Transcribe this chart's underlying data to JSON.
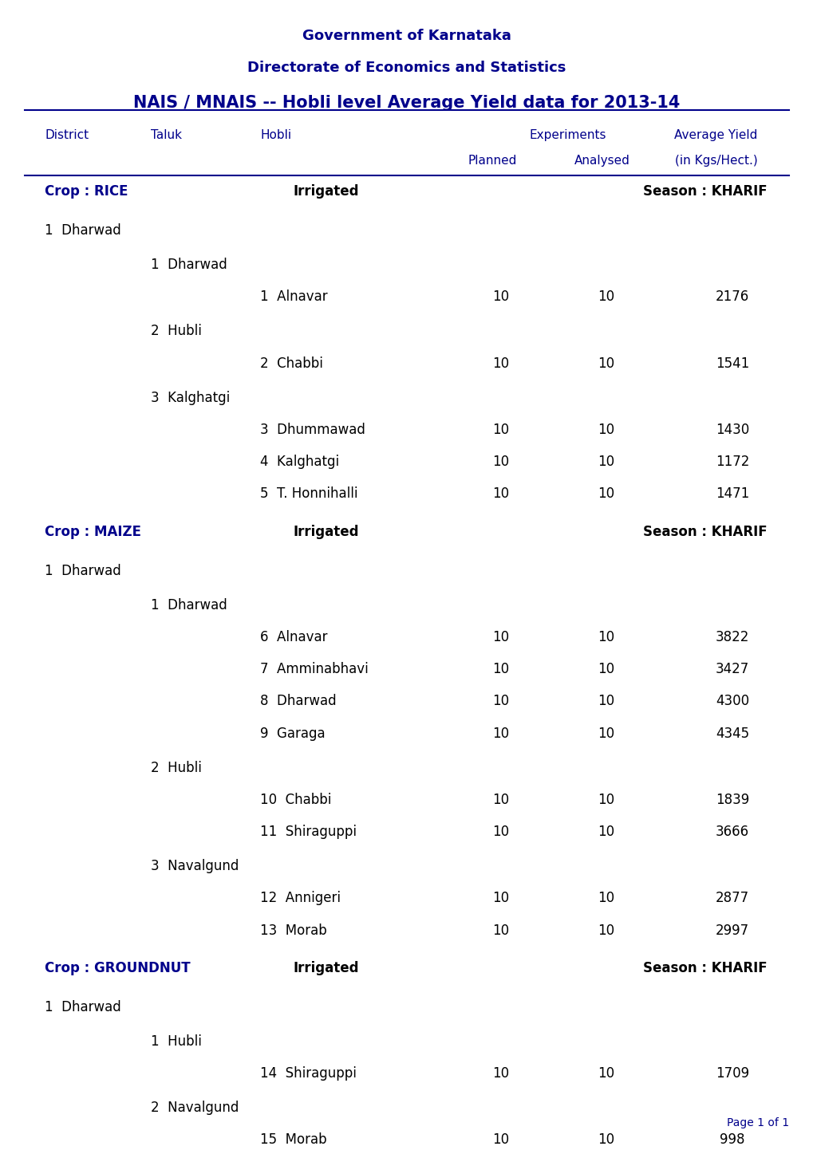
{
  "title_line1": "Government of Karnataka",
  "title_line2": "Directorate of Economics and Statistics",
  "title_line3": "NAIS / MNAIS -- Hobli level Average Yield data for 2013-14",
  "header_col1": "District",
  "header_col2": "Taluk",
  "header_col3": "Hobli",
  "header_exp": "Experiments",
  "header_planned": "Planned",
  "header_analysed": "Analysed",
  "header_avg": "Average Yield\n(in Kgs/Hect.)",
  "dark_blue": "#00008B",
  "medium_blue": "#0000CD",
  "text_color": "#000080",
  "rows": [
    {
      "type": "crop_header",
      "crop": "Crop : RICE",
      "irrigation": "Irrigated",
      "season": "Season : KHARIF"
    },
    {
      "type": "district",
      "num": "1",
      "name": "Dharwad"
    },
    {
      "type": "taluk",
      "num": "1",
      "name": "Dharwad"
    },
    {
      "type": "data",
      "hobli_num": "1",
      "hobli": "Alnavar",
      "planned": "10",
      "analysed": "10",
      "avg_yield": "2176"
    },
    {
      "type": "taluk",
      "num": "2",
      "name": "Hubli"
    },
    {
      "type": "data",
      "hobli_num": "2",
      "hobli": "Chabbi",
      "planned": "10",
      "analysed": "10",
      "avg_yield": "1541"
    },
    {
      "type": "taluk",
      "num": "3",
      "name": "Kalghatgi"
    },
    {
      "type": "data",
      "hobli_num": "3",
      "hobli": "Dhummawad",
      "planned": "10",
      "analysed": "10",
      "avg_yield": "1430"
    },
    {
      "type": "data",
      "hobli_num": "4",
      "hobli": "Kalghatgi",
      "planned": "10",
      "analysed": "10",
      "avg_yield": "1172"
    },
    {
      "type": "data",
      "hobli_num": "5",
      "hobli": "T. Honnihalli",
      "planned": "10",
      "analysed": "10",
      "avg_yield": "1471"
    },
    {
      "type": "crop_header",
      "crop": "Crop : MAIZE",
      "irrigation": "Irrigated",
      "season": "Season : KHARIF"
    },
    {
      "type": "district",
      "num": "1",
      "name": "Dharwad"
    },
    {
      "type": "taluk",
      "num": "1",
      "name": "Dharwad"
    },
    {
      "type": "data",
      "hobli_num": "6",
      "hobli": "Alnavar",
      "planned": "10",
      "analysed": "10",
      "avg_yield": "3822"
    },
    {
      "type": "data",
      "hobli_num": "7",
      "hobli": "Amminabhavi",
      "planned": "10",
      "analysed": "10",
      "avg_yield": "3427"
    },
    {
      "type": "data",
      "hobli_num": "8",
      "hobli": "Dharwad",
      "planned": "10",
      "analysed": "10",
      "avg_yield": "4300"
    },
    {
      "type": "data",
      "hobli_num": "9",
      "hobli": "Garaga",
      "planned": "10",
      "analysed": "10",
      "avg_yield": "4345"
    },
    {
      "type": "taluk",
      "num": "2",
      "name": "Hubli"
    },
    {
      "type": "data",
      "hobli_num": "10",
      "hobli": "Chabbi",
      "planned": "10",
      "analysed": "10",
      "avg_yield": "1839"
    },
    {
      "type": "data",
      "hobli_num": "11",
      "hobli": "Shiraguppi",
      "planned": "10",
      "analysed": "10",
      "avg_yield": "3666"
    },
    {
      "type": "taluk",
      "num": "3",
      "name": "Navalgund"
    },
    {
      "type": "data",
      "hobli_num": "12",
      "hobli": "Annigeri",
      "planned": "10",
      "analysed": "10",
      "avg_yield": "2877"
    },
    {
      "type": "data",
      "hobli_num": "13",
      "hobli": "Morab",
      "planned": "10",
      "analysed": "10",
      "avg_yield": "2997"
    },
    {
      "type": "crop_header",
      "crop": "Crop : GROUNDNUT",
      "irrigation": "Irrigated",
      "season": "Season : KHARIF"
    },
    {
      "type": "district",
      "num": "1",
      "name": "Dharwad"
    },
    {
      "type": "taluk",
      "num": "1",
      "name": "Hubli"
    },
    {
      "type": "data",
      "hobli_num": "14",
      "hobli": "Shiraguppi",
      "planned": "10",
      "analysed": "10",
      "avg_yield": "1709"
    },
    {
      "type": "taluk",
      "num": "2",
      "name": "Navalgund"
    },
    {
      "type": "data",
      "hobli_num": "15",
      "hobli": "Morab",
      "planned": "10",
      "analysed": "10",
      "avg_yield": "998"
    }
  ],
  "footer": "Page 1 of 1",
  "bg_color": "#FFFFFF"
}
